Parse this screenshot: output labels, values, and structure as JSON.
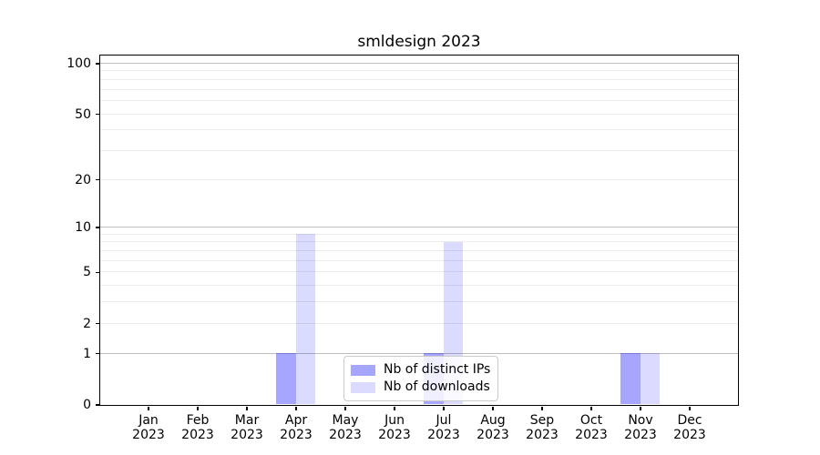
{
  "chart_data": {
    "type": "bar",
    "title": "smldesign 2023",
    "categories": [
      "Jan",
      "Feb",
      "Mar",
      "Apr",
      "May",
      "Jun",
      "Jul",
      "Aug",
      "Sep",
      "Oct",
      "Nov",
      "Dec"
    ],
    "year_label": "2023",
    "series": [
      {
        "name": "Nb of distinct IPs",
        "color": "rgba(0,0,255,0.35)",
        "values": [
          0,
          0,
          0,
          1,
          0,
          0,
          1,
          0,
          0,
          0,
          1,
          0
        ]
      },
      {
        "name": "Nb of downloads",
        "color": "rgba(0,0,255,0.14)",
        "values": [
          0,
          0,
          0,
          9,
          0,
          0,
          8,
          0,
          0,
          0,
          1,
          0
        ]
      }
    ],
    "xlabel": "",
    "ylabel": "",
    "yscale": "log1p",
    "ylim": [
      0,
      112
    ],
    "ytick_values": [
      0,
      1,
      2,
      5,
      10,
      20,
      50,
      100
    ],
    "major_gridline_values": [
      1,
      10,
      100
    ],
    "minor_gridline_values": [
      2,
      3,
      4,
      5,
      6,
      7,
      8,
      9,
      20,
      30,
      40,
      50,
      60,
      70,
      80,
      90
    ],
    "grid": "horizontal",
    "legend_position": "lower center",
    "colors": {
      "bar_distinct_ips": "rgba(0,0,255,0.35)",
      "bar_downloads": "rgba(0,0,255,0.14)",
      "major_grid": "#bdbdbd",
      "minor_grid": "#ececec",
      "spine": "#000000"
    }
  }
}
